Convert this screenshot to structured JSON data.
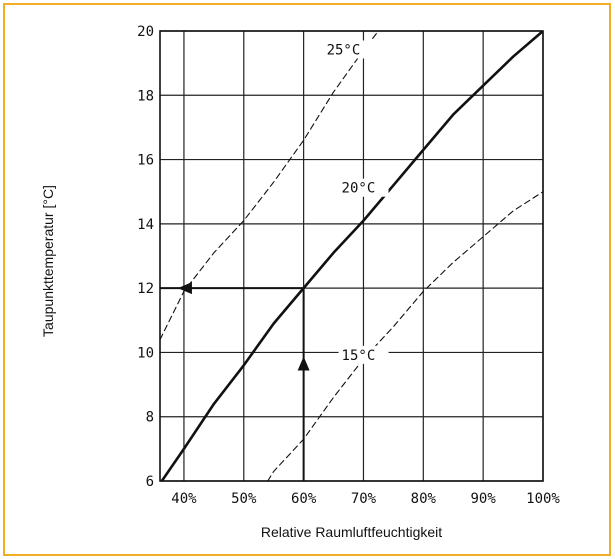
{
  "chart_data": {
    "type": "line",
    "xlabel": "Relative Raumluftfeuchtigkeit",
    "ylabel": "Taupunkttemperatur [°C]",
    "xlim": [
      36,
      100
    ],
    "ylim": [
      6,
      20
    ],
    "grid": true,
    "x_ticks": [
      40,
      50,
      60,
      70,
      80,
      90,
      100
    ],
    "x_tick_labels": [
      "40%",
      "50%",
      "60%",
      "70%",
      "80%",
      "90%",
      "100%"
    ],
    "y_ticks": [
      6,
      8,
      10,
      12,
      14,
      16,
      18,
      20
    ],
    "y_tick_labels": [
      "6",
      "8",
      "10",
      "12",
      "14",
      "16",
      "18",
      "20"
    ],
    "series": [
      {
        "name": "25°C",
        "style": "dashed",
        "x": [
          36,
          40,
          45,
          50,
          55,
          60,
          65,
          70,
          72.5
        ],
        "y": [
          10.4,
          11.9,
          13.1,
          14.1,
          15.3,
          16.6,
          18.1,
          19.4,
          20.0
        ]
      },
      {
        "name": "20°C",
        "style": "solid",
        "x": [
          36.3,
          40,
          45,
          50,
          55,
          60,
          65,
          70,
          75,
          80,
          85,
          90,
          95,
          100
        ],
        "y": [
          6.0,
          7.0,
          8.4,
          9.6,
          10.9,
          12.0,
          13.1,
          14.1,
          15.2,
          16.3,
          17.4,
          18.3,
          19.2,
          20.0
        ]
      },
      {
        "name": "15°C",
        "style": "dashed",
        "x": [
          54,
          55,
          60,
          65,
          70,
          75,
          80,
          85,
          90,
          95,
          100
        ],
        "y": [
          6.0,
          6.3,
          7.3,
          8.6,
          9.8,
          10.8,
          11.9,
          12.8,
          13.6,
          14.4,
          15.0
        ]
      }
    ],
    "annotations": [
      {
        "type": "arrow",
        "from": [
          60,
          6
        ],
        "to": [
          60,
          9.5
        ],
        "direction": "up"
      },
      {
        "type": "line",
        "from": [
          60,
          9.5
        ],
        "to": [
          60,
          12
        ]
      },
      {
        "type": "arrow",
        "from": [
          60,
          12
        ],
        "to": [
          41,
          12
        ],
        "direction": "left"
      },
      {
        "type": "line",
        "from": [
          41,
          12
        ],
        "to": [
          36,
          12
        ]
      }
    ]
  }
}
